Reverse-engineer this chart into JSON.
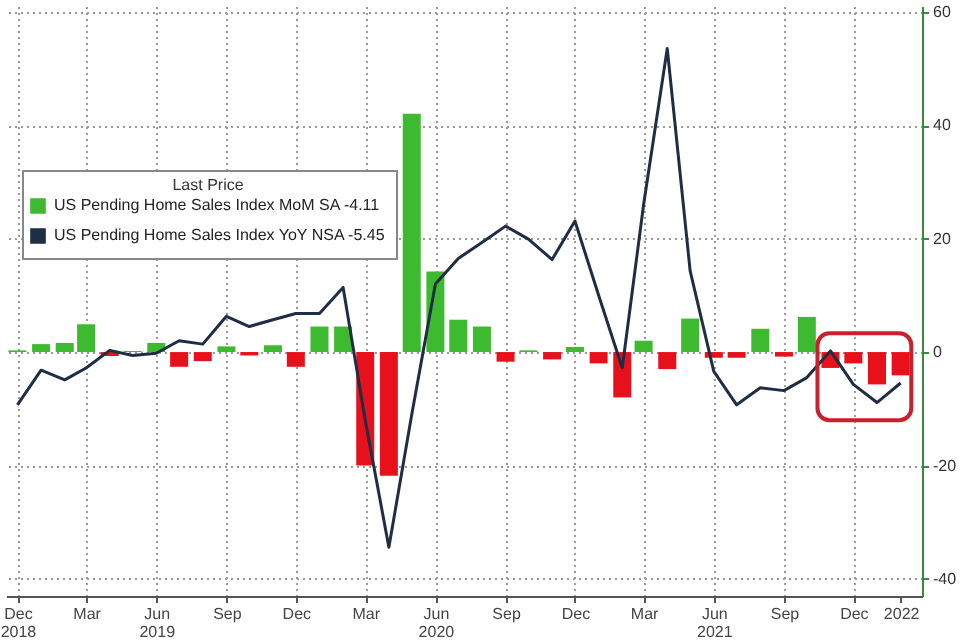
{
  "chart_data": {
    "type": "bar",
    "x": [
      "2018-12",
      "2019-01",
      "2019-02",
      "2019-03",
      "2019-04",
      "2019-05",
      "2019-06",
      "2019-07",
      "2019-08",
      "2019-09",
      "2019-10",
      "2019-11",
      "2019-12",
      "2020-01",
      "2020-02",
      "2020-03",
      "2020-04",
      "2020-05",
      "2020-06",
      "2020-07",
      "2020-08",
      "2020-09",
      "2020-10",
      "2020-11",
      "2020-12",
      "2021-01",
      "2021-02",
      "2021-03",
      "2021-04",
      "2021-05",
      "2021-06",
      "2021-07",
      "2021-08",
      "2021-09",
      "2021-10",
      "2021-11",
      "2021-12",
      "2022-01",
      "2022-02"
    ],
    "series": [
      {
        "name": "US Pending Home Sales Index MoM SA  -4.11",
        "color": "#3dba2f",
        "colors": [
          "#3dba2f",
          "#3dba2f",
          "#3dba2f",
          "#3dba2f",
          "#e8101a",
          "#3dba2f",
          "#3dba2f",
          "#e8101a",
          "#e8101a",
          "#3dba2f",
          "#e8101a",
          "#3dba2f",
          "#e8101a",
          "#3dba2f",
          "#3dba2f",
          "#e8101a",
          "#e8101a",
          "#3dba2f",
          "#3dba2f",
          "#3dba2f",
          "#3dba2f",
          "#e8101a",
          "#3dba2f",
          "#e8101a",
          "#3dba2f",
          "#e8101a",
          "#e8101a",
          "#3dba2f",
          "#e8101a",
          "#3dba2f",
          "#e8101a",
          "#e8101a",
          "#3dba2f",
          "#e8101a",
          "#3dba2f",
          "#e8101a",
          "#e8101a",
          "#e8101a",
          "#e8101a"
        ],
        "values": [
          0.3,
          1.4,
          1.6,
          4.9,
          -0.7,
          0.2,
          1.6,
          -2.6,
          -1.6,
          1,
          -0.6,
          1.2,
          -2.6,
          4.5,
          4.5,
          -20,
          -21.8,
          42,
          14.2,
          5.7,
          4.5,
          -1.7,
          0.3,
          -1.3,
          0.9,
          -2,
          -8,
          2,
          -3,
          5.9,
          -1,
          -1,
          4.1,
          -0.8,
          6.2,
          -2.8,
          -2,
          -5.7,
          -4.11
        ]
      },
      {
        "name": "US Pending Home Sales Index YoY NSA -5.45",
        "type": "line",
        "color": "#1f2d45",
        "values": [
          -9.3,
          -3.2,
          -4.9,
          -2.8,
          0.3,
          -0.6,
          -0.2,
          2,
          1.4,
          6.3,
          4.5,
          5.7,
          6.8,
          6.8,
          11.4,
          -12,
          -34.4,
          -11,
          12,
          16.5,
          19.3,
          22.2,
          19.9,
          16.3,
          23.1,
          10,
          -2.8,
          26,
          53.5,
          14.3,
          -3.4,
          -9.3,
          -6.3,
          -6.8,
          -4.5,
          0.2,
          -5.7,
          -8.9,
          -5.45
        ]
      }
    ],
    "legend_title": "Last Price",
    "legend": "left",
    "xlim": [
      "2018-11-16",
      "2022-03-01"
    ],
    "xticks": [
      {
        "value": "2018-12",
        "label": "Dec\n2018"
      },
      {
        "value": "2019-03",
        "label": "Mar"
      },
      {
        "value": "2019-06",
        "label": "Jun\n2019"
      },
      {
        "value": "2019-09",
        "label": "Sep"
      },
      {
        "value": "2019-12",
        "label": "Dec"
      },
      {
        "value": "2020-03",
        "label": "Mar"
      },
      {
        "value": "2020-06",
        "label": "Jun\n2020"
      },
      {
        "value": "2020-09",
        "label": "Sep"
      },
      {
        "value": "2020-12",
        "label": "Dec"
      },
      {
        "value": "2021-03",
        "label": "Mar"
      },
      {
        "value": "2021-06",
        "label": "Jun\n2021"
      },
      {
        "value": "2021-09",
        "label": "Sep"
      },
      {
        "value": "2021-12",
        "label": "Dec"
      },
      {
        "value": "2022-02",
        "label": "2022"
      }
    ],
    "ylim": [
      -43,
      61
    ],
    "yticks": [
      -40,
      -20,
      0,
      20,
      40,
      60
    ],
    "grid": true,
    "marker": "none"
  }
}
